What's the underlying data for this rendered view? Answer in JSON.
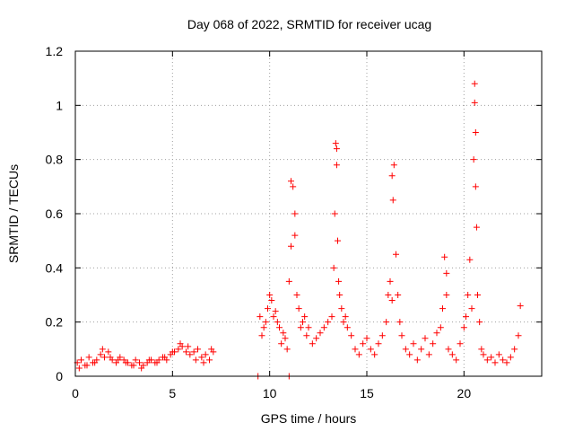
{
  "chart_data": {
    "type": "scatter",
    "title": "Day 068 of 2022, SRMTID for receiver ucag",
    "xlabel": "GPS time / hours",
    "ylabel": "SRMTID / TECUs",
    "xlim": [
      0,
      24
    ],
    "ylim": [
      0,
      1.2
    ],
    "xticks": [
      0,
      5,
      10,
      15,
      20
    ],
    "yticks": [
      0,
      0.2,
      0.4,
      0.6,
      0.8,
      1.0,
      1.2
    ],
    "xtick_labels": [
      "0",
      "5",
      "10",
      "15",
      "20"
    ],
    "ytick_labels": [
      "0",
      "0.2",
      "0.4",
      "0.6",
      "0.8",
      "1",
      "1.2"
    ],
    "grid": true,
    "marker": "+",
    "color": "#ff0000",
    "series": [
      {
        "name": "SRMTID",
        "x": [
          0.1,
          0.3,
          0.5,
          0.7,
          0.9,
          1.1,
          1.3,
          1.5,
          1.7,
          1.9,
          2.1,
          2.3,
          2.5,
          2.7,
          2.9,
          3.1,
          3.3,
          3.5,
          3.7,
          3.9,
          4.1,
          4.3,
          4.5,
          4.7,
          4.9,
          5.1,
          5.3,
          5.5,
          5.7,
          5.9,
          6.1,
          6.3,
          6.5,
          6.7,
          6.9,
          7.1,
          0.2,
          0.6,
          1.0,
          1.4,
          1.8,
          2.2,
          2.6,
          3.0,
          3.4,
          3.8,
          4.2,
          4.6,
          5.0,
          5.4,
          5.8,
          6.2,
          6.6,
          7.0,
          9.4,
          11.0,
          9.5,
          9.6,
          9.7,
          9.8,
          9.9,
          10.0,
          10.1,
          10.2,
          10.3,
          10.4,
          10.5,
          10.6,
          10.7,
          10.8,
          10.9,
          11.0,
          11.1,
          11.2,
          11.3,
          11.4,
          11.5,
          11.6,
          11.7,
          11.8,
          11.9,
          12.0,
          12.2,
          12.4,
          12.6,
          12.8,
          13.0,
          13.2,
          13.3,
          13.35,
          13.4,
          13.45,
          13.5,
          13.55,
          13.6,
          13.7,
          13.8,
          13.9,
          14.0,
          14.2,
          14.4,
          14.6,
          14.8,
          15.0,
          15.2,
          15.4,
          15.6,
          15.8,
          16.0,
          16.1,
          16.2,
          16.3,
          16.4,
          16.5,
          16.6,
          16.7,
          16.8,
          17.0,
          17.2,
          17.4,
          17.6,
          17.8,
          18.0,
          18.2,
          18.4,
          18.6,
          18.8,
          18.9,
          19.0,
          19.1,
          19.2,
          19.4,
          19.6,
          19.8,
          20.0,
          20.1,
          20.2,
          20.3,
          20.4,
          20.5,
          20.55,
          20.6,
          20.65,
          20.7,
          20.8,
          20.9,
          21.0,
          21.2,
          21.4,
          21.6,
          21.8,
          22.0,
          22.2,
          22.4,
          22.6,
          22.8,
          22.9,
          11.1,
          11.3,
          13.45,
          16.3,
          16.35,
          19.1,
          20.55,
          20.6
        ],
        "y": [
          0.05,
          0.06,
          0.04,
          0.07,
          0.05,
          0.06,
          0.08,
          0.07,
          0.09,
          0.06,
          0.05,
          0.07,
          0.06,
          0.05,
          0.04,
          0.06,
          0.05,
          0.04,
          0.05,
          0.06,
          0.05,
          0.06,
          0.07,
          0.06,
          0.08,
          0.09,
          0.1,
          0.11,
          0.09,
          0.08,
          0.09,
          0.1,
          0.07,
          0.08,
          0.06,
          0.09,
          0.03,
          0.04,
          0.05,
          0.1,
          0.07,
          0.06,
          0.05,
          0.04,
          0.03,
          0.06,
          0.05,
          0.07,
          0.09,
          0.12,
          0.11,
          0.06,
          0.05,
          0.1,
          0.0,
          0.0,
          0.22,
          0.15,
          0.18,
          0.2,
          0.25,
          0.3,
          0.28,
          0.22,
          0.24,
          0.2,
          0.18,
          0.12,
          0.16,
          0.14,
          0.1,
          0.35,
          0.48,
          0.7,
          0.52,
          0.3,
          0.25,
          0.18,
          0.2,
          0.22,
          0.15,
          0.18,
          0.12,
          0.14,
          0.16,
          0.18,
          0.2,
          0.22,
          0.4,
          0.6,
          0.86,
          0.78,
          0.5,
          0.35,
          0.3,
          0.25,
          0.2,
          0.22,
          0.18,
          0.15,
          0.1,
          0.08,
          0.12,
          0.14,
          0.1,
          0.08,
          0.12,
          0.15,
          0.2,
          0.3,
          0.35,
          0.28,
          0.78,
          0.45,
          0.3,
          0.2,
          0.15,
          0.1,
          0.08,
          0.12,
          0.06,
          0.1,
          0.14,
          0.08,
          0.12,
          0.16,
          0.18,
          0.25,
          0.44,
          0.3,
          0.1,
          0.08,
          0.06,
          0.12,
          0.18,
          0.22,
          0.3,
          0.43,
          0.25,
          0.8,
          1.08,
          0.9,
          0.55,
          0.3,
          0.2,
          0.1,
          0.08,
          0.06,
          0.07,
          0.05,
          0.08,
          0.06,
          0.05,
          0.07,
          0.1,
          0.15,
          0.26,
          0.72,
          0.6,
          0.84,
          0.74,
          0.65,
          0.38,
          1.01,
          0.7
        ]
      }
    ]
  }
}
